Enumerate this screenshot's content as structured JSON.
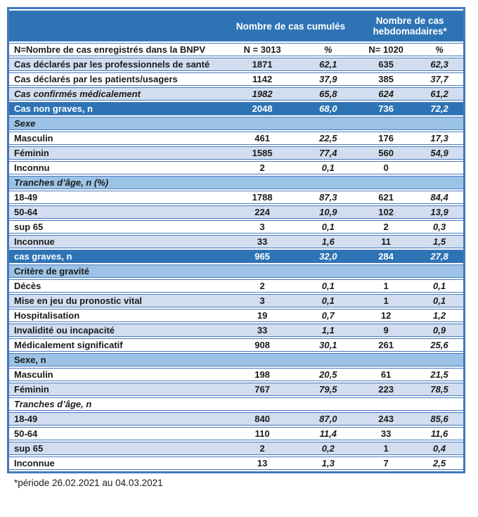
{
  "colors": {
    "header_blue": "#2E74B5",
    "section_blue": "#9CC3E5",
    "row_light_blue": "#D2DEEF",
    "border_blue": "#4678BE",
    "highlight_text": "#FFFFFF",
    "text": "#1A1A1A"
  },
  "table": {
    "header": {
      "cumulative": "Nombre de cas cumulés",
      "weekly": "Nombre de cas hebdomadaires*"
    },
    "subheader": {
      "label": "N=Nombre de cas enregistrés dans la BNPV",
      "n_cumul": "N = 3013",
      "pct_cumul": "%",
      "n_hebdo": "N= 1020",
      "pct_hebdo": "%"
    },
    "rows": [
      {
        "label": "Cas déclarés par les professionnels de santé",
        "n1": "1871",
        "p1": "62,1",
        "n2": "635",
        "p2": "62,3"
      },
      {
        "label": "Cas déclarés par les patients/usagers",
        "n1": "1142",
        "p1": "37,9",
        "n2": "385",
        "p2": "37,7"
      },
      {
        "label": "Cas confirmés médicalement",
        "n1": "1982",
        "p1": "65,8",
        "n2": "624",
        "p2": "61,2"
      },
      {
        "label": "Cas non graves, n",
        "n1": "2048",
        "p1": "68,0",
        "n2": "736",
        "p2": "72,2"
      },
      {
        "label": "Sexe"
      },
      {
        "label": "Masculin",
        "n1": "461",
        "p1": "22,5",
        "n2": "176",
        "p2": "17,3"
      },
      {
        "label": "Féminin",
        "n1": "1585",
        "p1": "77,4",
        "n2": "560",
        "p2": "54,9"
      },
      {
        "label": "Inconnu",
        "n1": "2",
        "p1": "0,1",
        "n2": "0",
        "p2": ""
      },
      {
        "label": "Tranches d’âge, n (%)"
      },
      {
        "label": "18-49",
        "n1": "1788",
        "p1": "87,3",
        "n2": "621",
        "p2": "84,4"
      },
      {
        "label": "50-64",
        "n1": "224",
        "p1": "10,9",
        "n2": "102",
        "p2": "13,9"
      },
      {
        "label": "sup 65",
        "n1": "3",
        "p1": "0,1",
        "n2": "2",
        "p2": "0,3"
      },
      {
        "label": "Inconnue",
        "n1": "33",
        "p1": "1,6",
        "n2": "11",
        "p2": "1,5"
      },
      {
        "label": "cas graves, n",
        "n1": "965",
        "p1": "32,0",
        "n2": "284",
        "p2": "27,8"
      },
      {
        "label": "Critère de gravité"
      },
      {
        "label": "Décès",
        "n1": "2",
        "p1": "0,1",
        "n2": "1",
        "p2": "0,1"
      },
      {
        "label": "Mise en jeu du pronostic vital",
        "n1": "3",
        "p1": "0,1",
        "n2": "1",
        "p2": "0,1"
      },
      {
        "label": "Hospitalisation",
        "n1": "19",
        "p1": "0,7",
        "n2": "12",
        "p2": "1,2"
      },
      {
        "label": "Invalidité ou incapacité",
        "n1": "33",
        "p1": "1,1",
        "n2": "9",
        "p2": "0,9"
      },
      {
        "label": "Médicalement significatif",
        "n1": "908",
        "p1": "30,1",
        "n2": "261",
        "p2": "25,6"
      },
      {
        "label": "Sexe, n"
      },
      {
        "label": "Masculin",
        "n1": "198",
        "p1": "20,5",
        "n2": "61",
        "p2": "21,5"
      },
      {
        "label": "Féminin",
        "n1": "767",
        "p1": "79,5",
        "n2": "223",
        "p2": "78,5"
      },
      {
        "label": "Tranches d’âge, n"
      },
      {
        "label": "18-49",
        "n1": "840",
        "p1": "87,0",
        "n2": "243",
        "p2": "85,6"
      },
      {
        "label": "50-64",
        "n1": "110",
        "p1": "11,4",
        "n2": "33",
        "p2": "11,6"
      },
      {
        "label": "sup 65",
        "n1": "2",
        "p1": "0,2",
        "n2": "1",
        "p2": "0,4"
      },
      {
        "label": "Inconnue",
        "n1": "13",
        "p1": "1,3",
        "n2": "7",
        "p2": "2,5"
      }
    ]
  },
  "footnote": "*période 26.02.2021 au 04.03.2021"
}
